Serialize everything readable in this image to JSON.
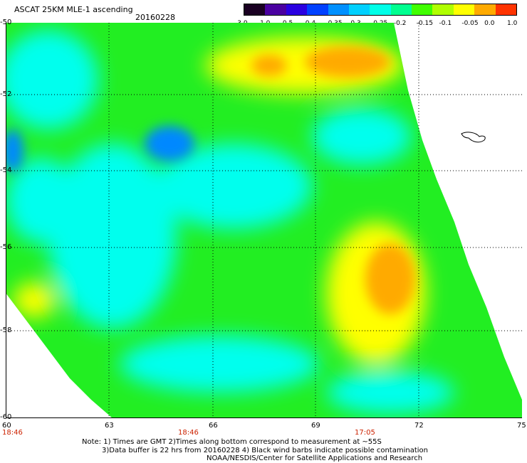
{
  "header": {
    "title": "ASCAT 25KM MLE-1 ascending",
    "date": "20160228"
  },
  "color_scale": {
    "labels": [
      "-3.0",
      "-1.0",
      "-0.5",
      "-0.4",
      "-0.35",
      "-0.3",
      "-0.25",
      "-0.2",
      "-0.15",
      "-0.1",
      "-0.05",
      "0.0",
      "1.0"
    ],
    "colors": [
      "#1a0022",
      "#4a00a0",
      "#2a00e0",
      "#0040ff",
      "#0090ff",
      "#00d0ff",
      "#00ffe8",
      "#00ff90",
      "#40ff00",
      "#b0ff00",
      "#ffff00",
      "#ffaa00",
      "#ff3300"
    ]
  },
  "axes": {
    "lat_labels": [
      "-50",
      "-52",
      "-54",
      "-56",
      "-58",
      "-60"
    ],
    "lon_labels": [
      "60",
      "63",
      "66",
      "69",
      "72",
      "75"
    ],
    "times": [
      "18:46",
      "18:46",
      "17:05"
    ]
  },
  "notes": {
    "line1": "Note: 1) Times are GMT 2)Times along bottom correspond to measurement at ~55S",
    "line2": "3)Data buffer is 22 hrs from 20160228 4) Black wind barbs indicate possible contamination",
    "line3": "NOAA/NESDIS/Center for Satellite Applications and Research"
  },
  "map": {
    "field_colors": {
      "base": "#22ee22",
      "cyan": "#00ffee",
      "blue": "#0088ff",
      "yellow": "#ffff00",
      "orange": "#ffaa00"
    }
  }
}
